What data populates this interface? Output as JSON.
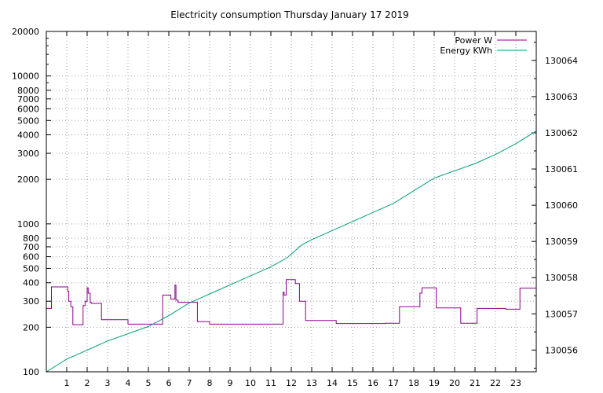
{
  "chart_data": {
    "type": "line",
    "title": "Electricity consumption Thursday January 17 2019",
    "xlabel": "",
    "ylabel": "",
    "xlim": [
      0,
      24
    ],
    "x_ticks": [
      1,
      2,
      3,
      4,
      5,
      6,
      7,
      8,
      9,
      10,
      11,
      12,
      13,
      14,
      15,
      16,
      17,
      18,
      19,
      20,
      21,
      22,
      23
    ],
    "y_scale": "log",
    "ylim": [
      100,
      20000
    ],
    "y_ticks": [
      100,
      200,
      300,
      400,
      500,
      600,
      700,
      800,
      1000,
      2000,
      3000,
      4000,
      5000,
      6000,
      7000,
      8000,
      10000,
      20000
    ],
    "y2lim": [
      130055.4,
      130064.8
    ],
    "y2_ticks": [
      130056,
      130057,
      130058,
      130059,
      130060,
      130061,
      130062,
      130063,
      130064
    ],
    "grid": true,
    "legend_position": "top-right",
    "series": [
      {
        "name": "Power W",
        "color": "#8b008b",
        "axis": "left",
        "style": "step",
        "x": [
          0,
          0.25,
          1.05,
          1.1,
          1.2,
          1.3,
          1.8,
          1.9,
          2.0,
          2.05,
          2.15,
          2.2,
          2.7,
          4.0,
          5.7,
          6.1,
          6.3,
          6.35,
          6.45,
          7.4,
          8.0,
          11.6,
          11.65,
          11.75,
          12.2,
          12.4,
          12.7,
          14.2,
          16.6,
          17.3,
          18.3,
          18.4,
          19.1,
          20.3,
          21.1,
          22.5,
          23.2,
          24.0
        ],
        "y": [
          268,
          375,
          350,
          300,
          275,
          208,
          280,
          300,
          370,
          340,
          295,
          290,
          225,
          210,
          330,
          310,
          385,
          305,
          295,
          218,
          210,
          345,
          330,
          420,
          395,
          300,
          222,
          212,
          213,
          275,
          340,
          370,
          270,
          213,
          268,
          265,
          368,
          368
        ]
      },
      {
        "name": "Energy KWh",
        "color": "#009e73",
        "axis": "right",
        "style": "line",
        "x": [
          0,
          1,
          2,
          3,
          4,
          5,
          6,
          7,
          8,
          9,
          10,
          11,
          11.8,
          12.5,
          13,
          14,
          15,
          16,
          17,
          18,
          19,
          20,
          21,
          22,
          23,
          24
        ],
        "y": [
          130055.4,
          130055.75,
          130056.0,
          130056.25,
          130056.45,
          130056.65,
          130056.95,
          130057.3,
          130057.55,
          130057.8,
          130058.05,
          130058.3,
          130058.55,
          130058.9,
          130059.05,
          130059.3,
          130059.55,
          130059.8,
          130060.05,
          130060.4,
          130060.75,
          130060.95,
          130061.15,
          130061.4,
          130061.7,
          130062.05
        ]
      }
    ]
  }
}
